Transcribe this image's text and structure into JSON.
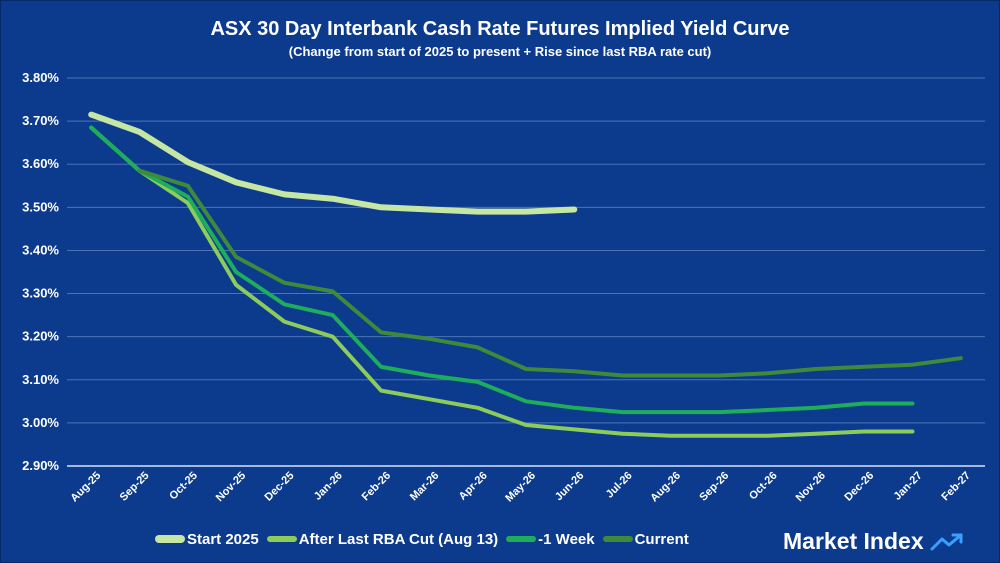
{
  "chart_data": {
    "type": "line",
    "title": "ASX 30 Day Interbank Cash Rate Futures Implied Yield Curve",
    "subtitle": "(Change from start of 2025 to present + Rise since last RBA rate cut)",
    "categories": [
      "Aug-25",
      "Sep-25",
      "Oct-25",
      "Nov-25",
      "Dec-25",
      "Jan-26",
      "Feb-26",
      "Mar-26",
      "Apr-26",
      "May-26",
      "Jun-26",
      "Jul-26",
      "Aug-26",
      "Sep-26",
      "Oct-26",
      "Nov-26",
      "Dec-26",
      "Jan-27",
      "Feb-27"
    ],
    "y_tick_labels": [
      "3.80%",
      "3.70%",
      "3.60%",
      "3.50%",
      "3.40%",
      "3.30%",
      "3.20%",
      "3.10%",
      "3.00%",
      "2.90%"
    ],
    "ylim": [
      2.9,
      3.8
    ],
    "grid": true,
    "legend_position": "bottom-left",
    "series": [
      {
        "name": "Start 2025",
        "color": "#c6e6a4",
        "width": 6,
        "values": [
          3.715,
          3.675,
          3.605,
          3.558,
          3.53,
          3.52,
          3.5,
          3.495,
          3.49,
          3.49,
          3.495,
          null,
          null,
          null,
          null,
          null,
          null,
          null,
          null
        ]
      },
      {
        "name": "After Last RBA Cut (Aug 13)",
        "color": "#8ccc5a",
        "width": 4,
        "values": [
          3.685,
          3.585,
          3.51,
          3.32,
          3.235,
          3.2,
          3.075,
          3.055,
          3.035,
          2.995,
          2.985,
          2.975,
          2.97,
          2.97,
          2.97,
          2.975,
          2.98,
          2.98,
          null
        ]
      },
      {
        "name": "-1 Week",
        "color": "#1ead5a",
        "width": 4,
        "values": [
          3.685,
          3.585,
          3.525,
          3.35,
          3.275,
          3.25,
          3.13,
          3.11,
          3.095,
          3.05,
          3.035,
          3.025,
          3.025,
          3.025,
          3.03,
          3.035,
          3.045,
          3.045,
          null
        ]
      },
      {
        "name": "Current",
        "color": "#3e8a3a",
        "width": 4,
        "values": [
          null,
          3.585,
          3.55,
          3.385,
          3.325,
          3.305,
          3.21,
          3.195,
          3.175,
          3.125,
          3.12,
          3.11,
          3.11,
          3.11,
          3.115,
          3.125,
          3.13,
          3.135,
          3.15
        ]
      }
    ]
  },
  "brand": {
    "name": "Market Index",
    "icon": "trend-arrow-icon"
  }
}
